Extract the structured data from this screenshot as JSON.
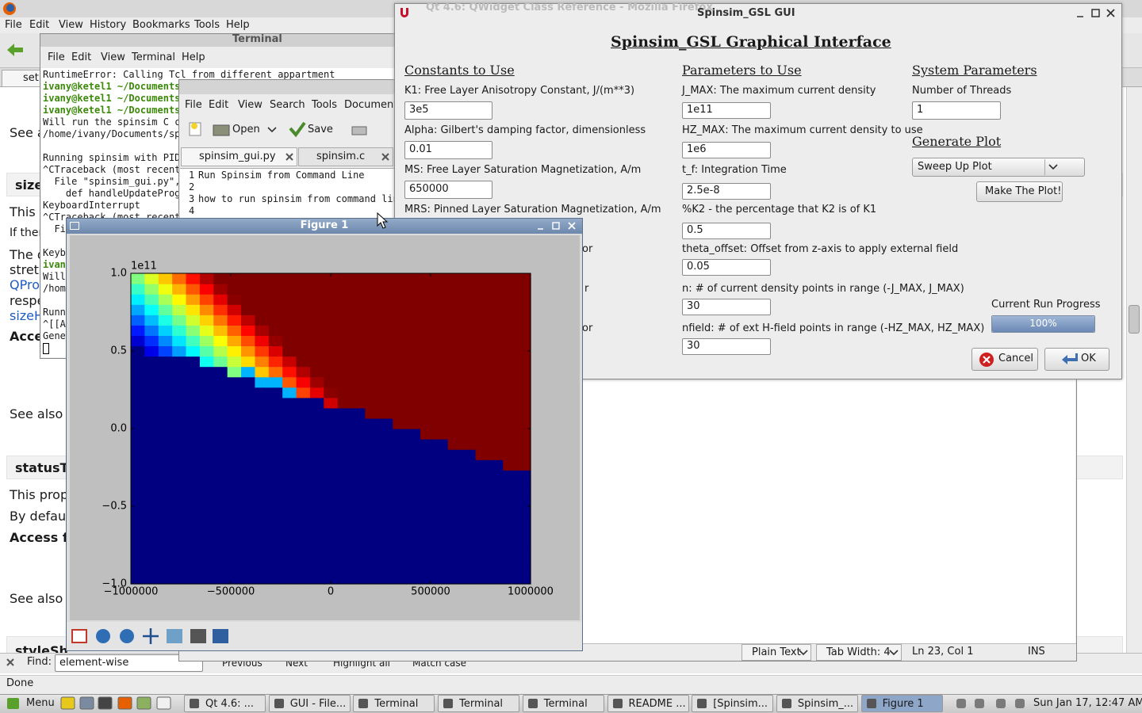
{
  "firefox": {
    "title": "Qt 4.6: QWidget Class Reference - Mozilla Firefox",
    "menu": [
      "File",
      "Edit",
      "View",
      "History",
      "Bookmarks",
      "Tools",
      "Help"
    ],
    "tab": "setu",
    "content": [
      "See a",
      "size",
      "This",
      "If ther",
      "The d",
      "stretc",
      "QPro",
      "respe",
      "sizeH",
      "Acce",
      "See also",
      "statusTi",
      "This prop",
      "By defaul",
      "Access f",
      "See also",
      "styleSh"
    ],
    "find_label": "Find:",
    "find_text": "element-wise",
    "find_buttons": [
      "Previous",
      "Next",
      "Highlight all",
      "Match case"
    ],
    "status": "Done"
  },
  "terminal": {
    "title": "Terminal",
    "menu": [
      "File",
      "Edit",
      "View",
      "Terminal",
      "Help"
    ],
    "lines": [
      "RuntimeError: Calling Tcl from different appartment",
      "ivany@ketel1 ~/Documents",
      "ivany@ketel1 ~/Documents",
      "ivany@ketel1 ~/Documents",
      "Will run the spinsim C c",
      "/home/ivany/Documents/sp",
      "Running spinsim with PID",
      "^CTraceback (most recent",
      "  File \"spinsim_gui.py\",",
      "    def handleUpdateProg",
      "KeyboardInterrupt",
      "^CTraceback (most recent",
      "  Fi",
      "Keyb",
      "ivan",
      "Will",
      "/hom",
      "Runn",
      "^[[A",
      "Gene"
    ]
  },
  "editor": {
    "menu": [
      "File",
      "Edit",
      "View",
      "Search",
      "Tools",
      "Document"
    ],
    "toolbar": [
      "Open",
      "Save"
    ],
    "tabs": [
      "spinsim_gui.py",
      "spinsim.c"
    ],
    "line_numbers": [
      "1",
      "2",
      "3",
      "4"
    ],
    "lines": [
      "Run Spinsim from Command Line",
      "how to run spinsim from command line"
    ],
    "status": [
      "Plain Text",
      "Tab Width: 4",
      "Ln 23, Col 1",
      "INS"
    ]
  },
  "gui": {
    "title": "Spinsim_GSL GUI",
    "heading": "Spinsim_GSL Graphical Interface",
    "constants": {
      "heading": "Constants to Use",
      "fields": [
        {
          "label": "K1: Free Layer Anisotropy Constant, J/(m**3)",
          "value": "3e5"
        },
        {
          "label": "Alpha: Gilbert's damping factor, dimensionless",
          "value": "0.01"
        },
        {
          "label": "MS: Free Layer Saturation Magnetization, A/m",
          "value": "650000"
        },
        {
          "label": "MRS: Pinned Layer Saturation Magnetization, A/m"
        }
      ],
      "fragments": [
        "or",
        "r",
        "or"
      ]
    },
    "parameters": {
      "heading": "Parameters to Use",
      "fields": [
        {
          "label": "J_MAX: The maximum current density",
          "value": "1e11"
        },
        {
          "label": "HZ_MAX: The maximum current density to use",
          "value": "1e6"
        },
        {
          "label": "t_f: Integration Time",
          "value": "2.5e-8"
        },
        {
          "label": "%K2 - the percentage that K2 is of K1",
          "value": "0.5"
        },
        {
          "label": "theta_offset: Offset from z-axis to apply external field",
          "value": "0.05"
        },
        {
          "label": "n: # of current density points in range (-J_MAX, J_MAX)",
          "value": "30"
        },
        {
          "label": "nfield: # of ext H-field points in range (-HZ_MAX, HZ_MAX)",
          "value": "30"
        }
      ]
    },
    "system": {
      "heading": "System Parameters",
      "label": "Number of Threads",
      "value": "1"
    },
    "plot": {
      "heading": "Generate Plot",
      "choice": "Sweep Up Plot",
      "button": "Make The Plot!"
    },
    "progress": {
      "label": "Current Run Progress",
      "value": 100,
      "value_label": "100%"
    },
    "buttons": [
      "Cancel",
      "OK"
    ]
  },
  "figure": {
    "title": "Figure 1"
  },
  "chart_data": {
    "type": "heatmap",
    "colormap": "jet",
    "offset_label": "1e11",
    "xlim": [
      -1000000,
      1000000
    ],
    "ylim": [
      -100000000000,
      100000000000
    ],
    "xticks": [
      {
        "value": -1000000,
        "label": "−1000000"
      },
      {
        "value": -500000,
        "label": "−500000"
      },
      0,
      500000,
      1000000
    ],
    "yticks": [
      {
        "value": -100000000000,
        "label": "−1.0"
      },
      {
        "value": -50000000000,
        "label": "−0.5"
      },
      {
        "value": 0,
        "label": "0.0"
      },
      {
        "value": 50000000000,
        "label": "0.5"
      },
      {
        "value": 100000000000,
        "label": "1.0"
      }
    ],
    "z": [
      [
        0,
        0,
        0,
        0,
        0,
        0,
        0,
        0,
        0,
        0,
        0,
        0,
        0,
        0,
        0,
        0,
        0,
        0,
        0,
        0,
        0,
        0,
        0,
        0,
        0,
        0,
        0,
        0,
        0
      ],
      [
        0,
        0,
        0,
        0,
        0,
        0,
        0,
        0,
        0,
        0,
        0,
        0,
        0,
        0,
        0,
        0,
        0,
        0,
        0,
        0,
        0,
        0,
        0,
        0,
        0,
        0,
        0,
        0,
        0
      ],
      [
        0,
        0,
        0,
        0,
        0,
        0,
        0,
        0,
        0,
        0,
        0,
        0,
        0,
        0,
        0,
        0,
        0,
        0,
        0,
        0,
        0,
        0,
        0,
        0,
        0,
        0,
        0,
        0,
        0
      ],
      [
        0,
        0,
        0,
        0,
        0,
        0,
        0,
        0,
        0,
        0,
        0,
        0,
        0,
        0,
        0,
        0,
        0,
        0,
        0,
        0,
        0,
        0,
        0,
        0,
        0,
        0,
        0,
        0,
        0
      ],
      [
        0,
        0,
        0,
        0,
        0,
        0,
        0,
        0,
        0,
        0,
        0,
        0,
        0,
        0,
        0,
        0,
        0,
        0,
        0,
        0,
        0,
        0,
        0,
        0,
        0,
        0,
        0,
        0,
        0
      ],
      [
        0,
        0,
        0,
        0,
        0,
        0,
        0,
        0,
        0,
        0,
        0,
        0,
        0,
        0,
        0,
        0,
        0,
        0,
        0,
        0,
        0,
        0,
        0,
        0,
        0,
        0,
        0,
        0,
        0
      ],
      [
        0,
        0,
        0,
        0,
        0,
        0,
        0,
        0,
        0,
        0,
        0,
        0,
        0,
        0,
        0,
        0,
        0,
        0,
        0,
        0,
        0,
        0,
        0,
        0,
        0,
        0,
        0,
        0,
        0
      ],
      [
        0,
        0,
        0,
        0,
        0,
        0,
        0,
        0,
        0,
        0,
        0,
        0,
        0,
        0,
        0,
        0,
        0,
        0,
        0,
        0,
        0,
        0,
        0,
        0,
        0,
        0,
        0,
        0,
        0
      ],
      [
        0,
        0,
        0,
        0,
        0,
        0,
        0,
        0,
        0,
        0,
        0,
        0,
        0,
        0,
        0,
        0,
        0,
        0,
        0,
        0,
        0,
        0,
        0,
        0,
        0,
        0,
        0,
        0,
        0
      ],
      [
        0,
        0,
        0,
        0,
        0,
        0,
        0,
        0,
        0,
        0,
        0,
        0,
        0,
        0,
        0,
        0,
        0,
        0,
        0,
        0,
        0,
        0,
        0,
        0,
        0,
        0,
        0,
        0,
        0
      ],
      [
        0,
        0,
        0,
        0,
        0,
        0,
        0,
        0,
        0,
        0,
        0,
        0,
        0,
        0,
        0,
        0,
        0,
        0,
        0,
        0,
        0,
        0,
        0,
        0,
        0,
        0,
        0,
        0,
        0
      ],
      [
        0,
        0,
        0,
        0,
        0,
        0,
        0,
        0,
        0,
        0,
        0,
        0,
        0,
        0,
        0,
        0,
        0,
        0,
        0,
        0,
        0,
        0,
        0,
        0,
        0,
        0,
        0,
        1,
        1
      ],
      [
        0,
        0,
        0,
        0,
        0,
        0,
        0,
        0,
        0,
        0,
        0,
        0,
        0,
        0,
        0,
        0,
        0,
        0,
        0,
        0,
        0,
        0,
        0,
        0,
        0,
        1,
        1,
        1,
        1
      ],
      [
        0,
        0,
        0,
        0,
        0,
        0,
        0,
        0,
        0,
        0,
        0,
        0,
        0,
        0,
        0,
        0,
        0,
        0,
        0,
        0,
        0,
        0,
        0,
        1,
        1,
        1,
        1,
        1,
        1
      ],
      [
        0,
        0,
        0,
        0,
        0,
        0,
        0,
        0,
        0,
        0,
        0,
        0,
        0,
        0,
        0,
        0,
        0,
        0,
        0,
        0,
        0,
        1,
        1,
        1,
        1,
        1,
        1,
        1,
        1
      ],
      [
        0,
        0,
        0,
        0,
        0,
        0,
        0,
        0,
        0,
        0,
        0,
        0,
        0,
        0,
        0,
        0,
        0,
        0,
        0,
        1,
        1,
        1,
        1,
        1,
        1,
        1,
        1,
        1,
        1
      ],
      [
        0,
        0,
        0,
        0,
        0,
        0,
        0,
        0,
        0,
        0,
        0,
        0,
        0,
        0,
        0,
        0,
        0,
        1,
        1,
        1,
        1,
        1,
        1,
        1,
        1,
        1,
        1,
        1,
        1
      ],
      [
        0,
        0,
        0,
        0,
        0,
        0,
        0,
        0,
        0,
        0,
        0,
        0,
        0,
        0,
        0.92,
        1,
        1,
        1,
        1,
        1,
        1,
        1,
        1,
        1,
        1,
        1,
        1,
        1,
        1
      ],
      [
        0,
        0,
        0,
        0,
        0,
        0,
        0,
        0,
        0,
        0,
        0,
        0.3,
        0.81,
        0.9,
        0.99,
        1,
        1,
        1,
        1,
        1,
        1,
        1,
        1,
        1,
        1,
        1,
        1,
        1,
        1
      ],
      [
        0,
        0,
        0,
        0,
        0,
        0,
        0,
        0,
        0,
        0.3,
        0.3,
        0.79,
        0.88,
        0.97,
        1,
        1,
        1,
        1,
        1,
        1,
        1,
        1,
        1,
        1,
        1,
        1,
        1,
        1,
        1
      ],
      [
        0,
        0,
        0,
        0,
        0,
        0,
        0,
        0.5,
        0.3,
        0.68,
        0.77,
        0.86,
        0.95,
        1,
        1,
        1,
        1,
        1,
        1,
        1,
        1,
        1,
        1,
        1,
        1,
        1,
        1,
        1,
        1
      ],
      [
        0,
        0,
        0,
        0,
        0,
        0.39,
        0.48,
        0.57,
        0.66,
        0.75,
        0.84,
        0.93,
        1,
        1,
        1,
        1,
        1,
        1,
        1,
        1,
        1,
        1,
        1,
        1,
        1,
        1,
        1,
        1,
        1
      ],
      [
        0,
        0.1,
        0.19,
        0.28,
        0.37,
        0.46,
        0.55,
        0.64,
        0.73,
        0.82,
        0.91,
        1,
        1,
        1,
        1,
        1,
        1,
        1,
        1,
        1,
        1,
        1,
        1,
        1,
        1,
        1,
        1,
        1,
        1
      ],
      [
        0.08,
        0.17,
        0.26,
        0.35,
        0.44,
        0.53,
        0.62,
        0.71,
        0.8,
        0.89,
        0.98,
        1,
        1,
        1,
        1,
        1,
        1,
        1,
        1,
        1,
        1,
        1,
        1,
        1,
        1,
        1,
        1,
        1,
        1
      ],
      [
        0.15,
        0.24,
        0.33,
        0.42,
        0.51,
        0.6,
        0.69,
        0.78,
        0.87,
        0.96,
        1,
        1,
        1,
        1,
        1,
        1,
        1,
        1,
        1,
        1,
        1,
        1,
        1,
        1,
        1,
        1,
        1,
        1,
        1
      ],
      [
        0.22,
        0.31,
        0.4,
        0.49,
        0.58,
        0.67,
        0.76,
        0.85,
        0.94,
        1,
        1,
        1,
        1,
        1,
        1,
        1,
        1,
        1,
        1,
        1,
        1,
        1,
        1,
        1,
        1,
        1,
        1,
        1,
        1
      ],
      [
        0.29,
        0.38,
        0.47,
        0.56,
        0.65,
        0.74,
        0.83,
        0.92,
        1,
        1,
        1,
        1,
        1,
        1,
        1,
        1,
        1,
        1,
        1,
        1,
        1,
        1,
        1,
        1,
        1,
        1,
        1,
        1,
        1
      ],
      [
        0.36,
        0.45,
        0.54,
        0.63,
        0.72,
        0.81,
        0.9,
        0.99,
        1,
        1,
        1,
        1,
        1,
        1,
        1,
        1,
        1,
        1,
        1,
        1,
        1,
        1,
        1,
        1,
        1,
        1,
        1,
        1,
        1
      ],
      [
        0.43,
        0.52,
        0.61,
        0.7,
        0.79,
        0.88,
        0.97,
        1,
        1,
        1,
        1,
        1,
        1,
        1,
        1,
        1,
        1,
        1,
        1,
        1,
        1,
        1,
        1,
        1,
        1,
        1,
        1,
        1,
        1
      ],
      [
        0.5,
        0.59,
        0.68,
        0.77,
        0.86,
        0.95,
        1,
        1,
        1,
        1,
        1,
        1,
        1,
        1,
        1,
        1,
        1,
        1,
        1,
        1,
        1,
        1,
        1,
        1,
        1,
        1,
        1,
        1,
        1
      ]
    ]
  },
  "taskbar": {
    "menu": "Menu",
    "items": [
      "Qt 4.6: ...",
      "GUI - File...",
      "Terminal",
      "Terminal",
      "Terminal",
      "README ...",
      "[Spinsim...",
      "Spinsim_...",
      "Figure 1"
    ],
    "clock": "Sun Jan 17, 12:47 AM"
  }
}
